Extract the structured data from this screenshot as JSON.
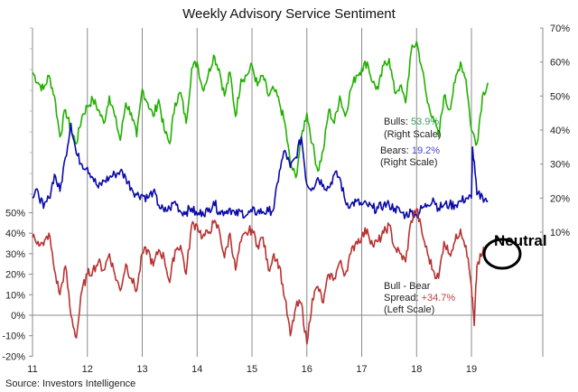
{
  "chart_data": {
    "type": "line",
    "title": "Weekly Advisory Service Sentiment",
    "source": "Source: Investors Intelligence",
    "x_ticks": [
      "11",
      "12",
      "13",
      "14",
      "15",
      "16",
      "17",
      "18",
      "19"
    ],
    "x_range": [
      2011,
      2020.3
    ],
    "left_axis": {
      "ticks": [
        "-20%",
        "-10%",
        "0%",
        "10%",
        "20%",
        "30%",
        "40%",
        "50%"
      ],
      "range": [
        -20,
        50
      ],
      "label": ""
    },
    "right_axis": {
      "ticks": [
        "10%",
        "20%",
        "30%",
        "40%",
        "50%",
        "60%",
        "70%"
      ],
      "range": [
        10,
        70
      ],
      "label": ""
    },
    "grid": "vertical year lines",
    "series": [
      {
        "name": "Bulls",
        "axis": "right",
        "color": "#22b000",
        "x": [
          2011.0,
          2011.1,
          2011.2,
          2011.3,
          2011.4,
          2011.5,
          2011.6,
          2011.7,
          2011.8,
          2011.9,
          2012.0,
          2012.1,
          2012.2,
          2012.3,
          2012.4,
          2012.5,
          2012.6,
          2012.7,
          2012.8,
          2012.9,
          2013.0,
          2013.1,
          2013.2,
          2013.3,
          2013.4,
          2013.5,
          2013.6,
          2013.7,
          2013.8,
          2013.9,
          2014.0,
          2014.1,
          2014.2,
          2014.3,
          2014.4,
          2014.5,
          2014.6,
          2014.7,
          2014.8,
          2014.9,
          2015.0,
          2015.1,
          2015.2,
          2015.3,
          2015.4,
          2015.5,
          2015.6,
          2015.7,
          2015.8,
          2015.9,
          2016.0,
          2016.1,
          2016.2,
          2016.3,
          2016.4,
          2016.5,
          2016.6,
          2016.7,
          2016.8,
          2016.9,
          2017.0,
          2017.1,
          2017.2,
          2017.3,
          2017.4,
          2017.5,
          2017.6,
          2017.7,
          2017.8,
          2017.9,
          2018.0,
          2018.1,
          2018.2,
          2018.3,
          2018.4,
          2018.5,
          2018.6,
          2018.7,
          2018.8,
          2018.9,
          2019.0,
          2019.1,
          2019.2,
          2019.3
        ],
        "values": [
          57,
          54,
          52,
          56,
          50,
          38,
          46,
          40,
          36,
          44,
          47,
          49,
          46,
          42,
          50,
          44,
          37,
          48,
          45,
          38,
          52,
          48,
          44,
          49,
          40,
          36,
          48,
          51,
          42,
          58,
          60,
          52,
          56,
          62,
          58,
          50,
          57,
          44,
          55,
          56,
          59,
          53,
          56,
          50,
          52,
          48,
          42,
          30,
          26,
          38,
          45,
          36,
          28,
          34,
          46,
          42,
          50,
          44,
          52,
          56,
          58,
          60,
          54,
          52,
          59,
          61,
          51,
          53,
          48,
          63,
          66,
          58,
          48,
          44,
          38,
          50,
          46,
          54,
          60,
          55,
          40,
          36,
          50,
          53.9
        ]
      },
      {
        "name": "Bears",
        "axis": "right",
        "color": "#0a0aa8",
        "x": [
          2011.0,
          2011.1,
          2011.2,
          2011.3,
          2011.4,
          2011.5,
          2011.6,
          2011.7,
          2011.8,
          2011.9,
          2012.0,
          2012.1,
          2012.2,
          2012.3,
          2012.4,
          2012.5,
          2012.6,
          2012.7,
          2012.8,
          2012.9,
          2013.0,
          2013.1,
          2013.2,
          2013.3,
          2013.4,
          2013.5,
          2013.6,
          2013.7,
          2013.8,
          2013.9,
          2014.0,
          2014.1,
          2014.2,
          2014.3,
          2014.4,
          2014.5,
          2014.6,
          2014.7,
          2014.8,
          2014.9,
          2015.0,
          2015.1,
          2015.2,
          2015.3,
          2015.4,
          2015.5,
          2015.6,
          2015.7,
          2015.8,
          2015.9,
          2016.0,
          2016.1,
          2016.2,
          2016.3,
          2016.4,
          2016.5,
          2016.6,
          2016.7,
          2016.8,
          2016.9,
          2017.0,
          2017.1,
          2017.2,
          2017.3,
          2017.4,
          2017.5,
          2017.6,
          2017.7,
          2017.8,
          2017.9,
          2018.0,
          2018.1,
          2018.2,
          2018.3,
          2018.4,
          2018.5,
          2018.6,
          2018.7,
          2018.8,
          2018.9,
          2019.0,
          2019.02,
          2019.1,
          2019.2,
          2019.3
        ],
        "values": [
          20,
          22,
          17,
          20,
          27,
          22,
          32,
          42,
          33,
          30,
          29,
          26,
          23,
          25,
          26,
          27,
          28,
          26,
          23,
          21,
          21,
          20,
          22,
          18,
          16,
          17,
          19,
          16,
          16,
          17,
          15,
          16,
          16,
          19,
          16,
          16,
          17,
          15,
          16,
          15,
          16,
          16,
          16,
          16,
          17,
          28,
          34,
          29,
          32,
          38,
          24,
          23,
          26,
          24,
          23,
          27,
          26,
          19,
          18,
          19,
          18,
          18,
          17,
          17,
          18,
          18,
          17,
          16,
          15,
          16,
          15,
          17,
          18,
          20,
          17,
          18,
          18,
          18,
          19,
          20,
          20,
          35,
          21,
          20.5,
          19.2
        ]
      },
      {
        "name": "Bull - Bear Spread",
        "axis": "left",
        "color": "#b83232",
        "x": [
          2011.0,
          2011.1,
          2011.2,
          2011.3,
          2011.4,
          2011.5,
          2011.6,
          2011.7,
          2011.8,
          2011.9,
          2012.0,
          2012.1,
          2012.2,
          2012.3,
          2012.4,
          2012.5,
          2012.6,
          2012.7,
          2012.8,
          2012.9,
          2013.0,
          2013.1,
          2013.2,
          2013.3,
          2013.4,
          2013.5,
          2013.6,
          2013.7,
          2013.8,
          2013.9,
          2014.0,
          2014.1,
          2014.2,
          2014.3,
          2014.4,
          2014.5,
          2014.6,
          2014.7,
          2014.8,
          2014.9,
          2015.0,
          2015.1,
          2015.2,
          2015.3,
          2015.4,
          2015.5,
          2015.6,
          2015.7,
          2015.8,
          2015.9,
          2016.0,
          2016.1,
          2016.2,
          2016.3,
          2016.4,
          2016.5,
          2016.6,
          2016.7,
          2016.8,
          2016.9,
          2017.0,
          2017.1,
          2017.2,
          2017.3,
          2017.4,
          2017.5,
          2017.6,
          2017.7,
          2017.8,
          2017.9,
          2018.0,
          2018.1,
          2018.2,
          2018.3,
          2018.4,
          2018.5,
          2018.6,
          2018.7,
          2018.8,
          2018.9,
          2019.0,
          2019.05,
          2019.1,
          2019.2,
          2019.3
        ],
        "values": [
          38,
          36,
          34,
          40,
          22,
          10,
          24,
          0,
          -11,
          12,
          20,
          22,
          26,
          22,
          30,
          20,
          12,
          25,
          18,
          12,
          30,
          32,
          24,
          32,
          28,
          16,
          32,
          34,
          20,
          44,
          44,
          38,
          40,
          45,
          42,
          28,
          40,
          22,
          36,
          40,
          42,
          34,
          38,
          22,
          30,
          24,
          8,
          -10,
          4,
          6,
          -14,
          8,
          14,
          6,
          20,
          18,
          26,
          20,
          30,
          36,
          38,
          42,
          34,
          36,
          40,
          44,
          33,
          30,
          26,
          46,
          52,
          40,
          30,
          22,
          18,
          36,
          30,
          36,
          42,
          34,
          14,
          -5,
          24,
          30,
          34.7
        ]
      }
    ],
    "annotations": {
      "bulls_label": "Bulls: ",
      "bulls_value": "53.9%",
      "bulls_scale": "(Right Scale)",
      "bears_label": "Bears: ",
      "bears_value": "19.2%",
      "bears_scale": "(Right Scale)",
      "spread_line1": "Bull - Bear",
      "spread_label": "Spread: ",
      "spread_value": "+34.7%",
      "spread_scale": "(Left Scale)",
      "callout": "Neutral"
    }
  }
}
